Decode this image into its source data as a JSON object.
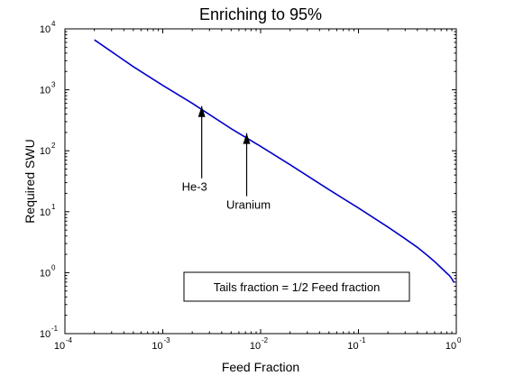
{
  "chart_data": {
    "type": "line",
    "title": "Enriching to 95%",
    "xlabel": "Feed Fraction",
    "ylabel": "Required SWU",
    "xscale": "log",
    "yscale": "log",
    "xlim": [
      0.0001,
      1
    ],
    "ylim": [
      0.1,
      10000
    ],
    "grid": false,
    "legend": null,
    "x_ticks": [
      {
        "value": 0.0001,
        "base": "10",
        "exp": "-4"
      },
      {
        "value": 0.001,
        "base": "10",
        "exp": "-3"
      },
      {
        "value": 0.01,
        "base": "10",
        "exp": "-2"
      },
      {
        "value": 0.1,
        "base": "10",
        "exp": "-1"
      },
      {
        "value": 1,
        "base": "10",
        "exp": "0"
      }
    ],
    "y_ticks": [
      {
        "value": 0.1,
        "base": "10",
        "exp": "-1"
      },
      {
        "value": 1,
        "base": "10",
        "exp": "0"
      },
      {
        "value": 10,
        "base": "10",
        "exp": "1"
      },
      {
        "value": 100,
        "base": "10",
        "exp": "2"
      },
      {
        "value": 1000,
        "base": "10",
        "exp": "3"
      },
      {
        "value": 10000,
        "base": "10",
        "exp": "4"
      }
    ],
    "series": [
      {
        "color": "#0000cc",
        "x": [
          0.0002,
          0.0005,
          0.001,
          0.002,
          0.005,
          0.01,
          0.02,
          0.05,
          0.1,
          0.2,
          0.3,
          0.4,
          0.5,
          0.6,
          0.7,
          0.8,
          0.85,
          0.9,
          0.93,
          0.95
        ],
        "y": [
          6600,
          2400,
          1180,
          600,
          230,
          118,
          59,
          23,
          11.5,
          5.6,
          3.6,
          2.6,
          1.95,
          1.52,
          1.2,
          0.98,
          0.9,
          0.8,
          0.72,
          0.69
        ]
      }
    ],
    "annotations": [
      {
        "text": "He-3",
        "x": 0.0025,
        "y": 540
      },
      {
        "text": "Uranium",
        "x": 0.0072,
        "y": 195
      }
    ],
    "textbox": "Tails fraction = 1/2 Feed fraction"
  }
}
